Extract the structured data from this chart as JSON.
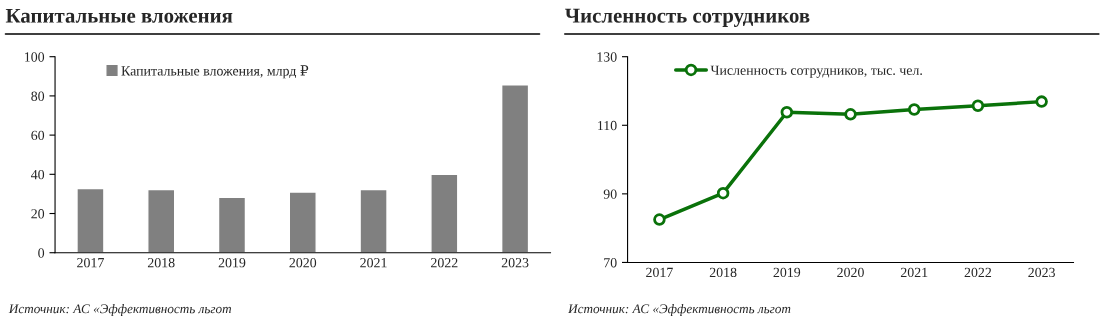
{
  "chart_data": [
    {
      "type": "bar",
      "title": "Капитальные вложения",
      "categories": [
        "2017",
        "2018",
        "2019",
        "2020",
        "2021",
        "2022",
        "2023"
      ],
      "series": [
        {
          "name": "Капитальные вложения, млрд ₽",
          "color": "#808080",
          "values": [
            32.7,
            32.2,
            28.3,
            31.0,
            32.2,
            40.0,
            85.6
          ]
        }
      ],
      "ylim": [
        0,
        100
      ],
      "yticks": [
        0,
        20,
        40,
        60,
        80,
        100
      ],
      "grid": false,
      "legend": "top left",
      "annotations": [
        "Источник: АС «Эффективность льгот"
      ]
    },
    {
      "type": "line",
      "title": "Численность сотрудников",
      "categories": [
        "2017",
        "2018",
        "2019",
        "2020",
        "2021",
        "2022",
        "2023"
      ],
      "series": [
        {
          "name": "Численность сотрудников, тыс. чел.",
          "color": "#0a720a",
          "values": [
            82.5,
            90.2,
            113.8,
            113.2,
            114.6,
            115.7,
            116.9
          ]
        }
      ],
      "ylim": [
        70,
        130
      ],
      "yticks": [
        70,
        90,
        110,
        130
      ],
      "grid": false,
      "legend": "top left",
      "marker": "circle",
      "line_style": "solid",
      "annotations": [
        "Источник: АС «Эффективность льгот"
      ]
    }
  ]
}
